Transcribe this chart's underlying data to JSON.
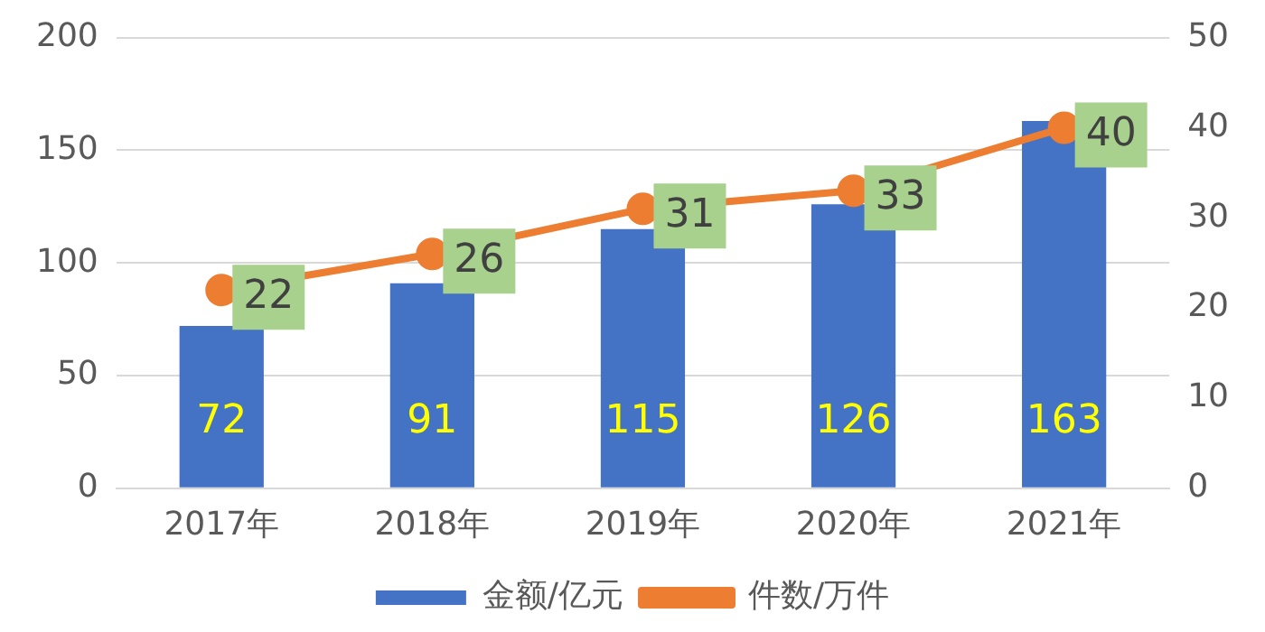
{
  "chart_data": {
    "type": "bar",
    "categories": [
      "2017年",
      "2018年",
      "2019年",
      "2020年",
      "2021年"
    ],
    "series": [
      {
        "name": "金额/亿元",
        "color": "#4472c4",
        "values": [
          72,
          91,
          115,
          126,
          163
        ]
      },
      {
        "name": "件数/万件",
        "type": "line",
        "axis": "y2",
        "color": "#ed7d31",
        "values": [
          22,
          26,
          31,
          33,
          40
        ]
      }
    ],
    "ylim": [
      0,
      200
    ],
    "yticks": [
      0,
      50,
      100,
      150,
      200
    ],
    "y2lim": [
      0,
      50
    ],
    "y2ticks": [
      0,
      10,
      20,
      30,
      40,
      50
    ],
    "grid": "y",
    "legend": "bottom",
    "marker": "circle",
    "data_labels": true
  }
}
